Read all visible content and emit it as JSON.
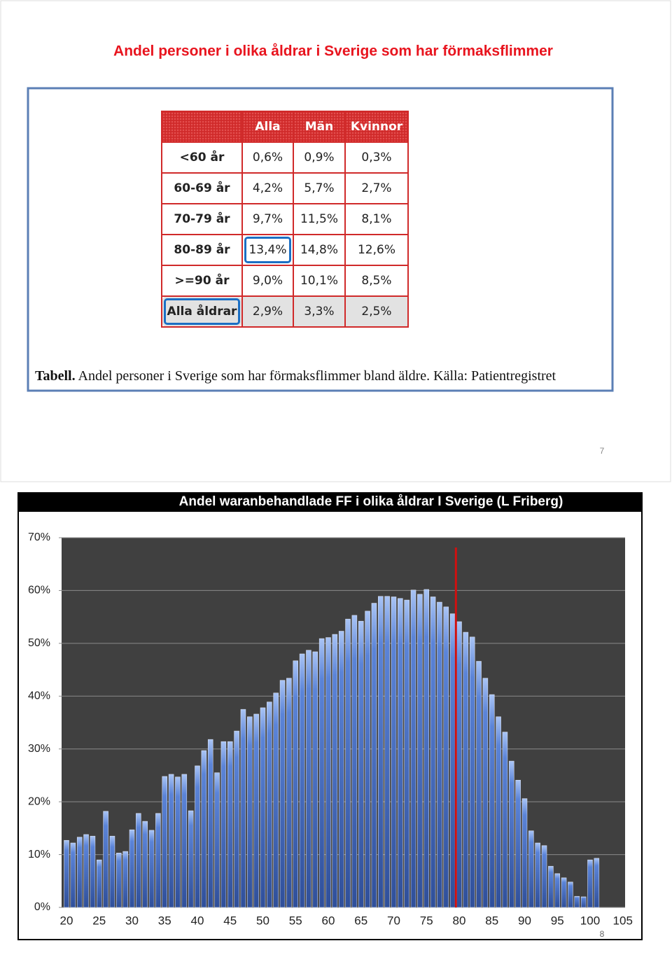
{
  "slide7": {
    "title": "Andel personer i olika åldrar i Sverige som har förmaksflimmer",
    "table": {
      "headers": [
        "Alla",
        "Män",
        "Kvinnor"
      ],
      "rows": [
        {
          "label": "<60 år",
          "cells": [
            "0,6%",
            "0,9%",
            "0,3%"
          ]
        },
        {
          "label": "60-69 år",
          "cells": [
            "4,2%",
            "5,7%",
            "2,7%"
          ]
        },
        {
          "label": "70-79 år",
          "cells": [
            "9,7%",
            "11,5%",
            "8,1%"
          ]
        },
        {
          "label": "80-89 år",
          "cells": [
            "13,4%",
            "14,8%",
            "12,6%"
          ]
        },
        {
          "label": ">=90 år",
          "cells": [
            "9,0%",
            "10,1%",
            "8,5%"
          ]
        },
        {
          "label": "Alla åldrar",
          "cells": [
            "2,9%",
            "3,3%",
            "2,5%"
          ]
        }
      ]
    },
    "caption_label": "Tabell.",
    "caption": "Andel personer i Sverige som har förmaksflimmer bland äldre. Källa: Patientregistret",
    "page_number": 7
  },
  "chart_data": {
    "type": "bar",
    "title": "Andel waranbehandlade FF i olika åldrar I Sverige  (L Friberg)",
    "x": [
      20,
      21,
      22,
      23,
      24,
      25,
      26,
      27,
      28,
      29,
      30,
      31,
      32,
      33,
      34,
      35,
      36,
      37,
      38,
      39,
      40,
      41,
      42,
      43,
      44,
      45,
      46,
      47,
      48,
      49,
      50,
      51,
      52,
      53,
      54,
      55,
      56,
      57,
      58,
      59,
      60,
      61,
      62,
      63,
      64,
      65,
      66,
      67,
      68,
      69,
      70,
      71,
      72,
      73,
      74,
      75,
      76,
      77,
      78,
      79,
      80,
      81,
      82,
      83,
      84,
      85,
      86,
      87,
      88,
      89,
      90,
      91,
      92,
      93,
      94,
      95,
      96,
      97,
      98,
      99,
      100,
      101
    ],
    "values": [
      12.7,
      12.2,
      13.3,
      13.8,
      13.5,
      9.0,
      18.2,
      13.5,
      10.3,
      10.6,
      14.7,
      17.8,
      16.3,
      14.6,
      17.8,
      24.8,
      25.2,
      24.7,
      25.2,
      18.3,
      26.8,
      29.7,
      31.8,
      25.5,
      31.4,
      31.4,
      33.4,
      37.5,
      36.1,
      36.6,
      37.8,
      38.9,
      40.6,
      43.0,
      43.4,
      46.7,
      48.0,
      48.7,
      48.4,
      50.9,
      51.1,
      51.7,
      52.3,
      54.6,
      55.3,
      54.2,
      56.1,
      57.6,
      58.9,
      58.9,
      58.8,
      58.5,
      58.2,
      60.1,
      59.3,
      60.2,
      58.8,
      57.8,
      56.9,
      55.6,
      54.1,
      52.1,
      51.2,
      46.6,
      43.4,
      40.3,
      36.1,
      33.2,
      27.7,
      24.1,
      20.6,
      14.5,
      12.2,
      11.7,
      7.8,
      6.4,
      5.6,
      4.8,
      2.1,
      2.0,
      9.0,
      9.3
    ],
    "color": "#5b84d8",
    "xlim": [
      19.25,
      105.35
    ],
    "xticks": [
      20,
      25,
      30,
      35,
      40,
      45,
      50,
      55,
      60,
      65,
      70,
      75,
      80,
      85,
      90,
      95,
      100,
      105
    ],
    "ylim": [
      0,
      70
    ],
    "yticks": [
      {
        "value": 0,
        "label": "0%"
      },
      {
        "value": 10,
        "label": "10%"
      },
      {
        "value": 20,
        "label": "20%"
      },
      {
        "value": 30,
        "label": "30%"
      },
      {
        "value": 40,
        "label": "40%"
      },
      {
        "value": 50,
        "label": "50%"
      },
      {
        "value": 60,
        "label": "60%"
      },
      {
        "value": 70,
        "label": "70%"
      }
    ],
    "grid": true,
    "reference_line": {
      "x": 79.5,
      "color": "#d01010"
    }
  },
  "slide8": {
    "page_number": 8
  }
}
